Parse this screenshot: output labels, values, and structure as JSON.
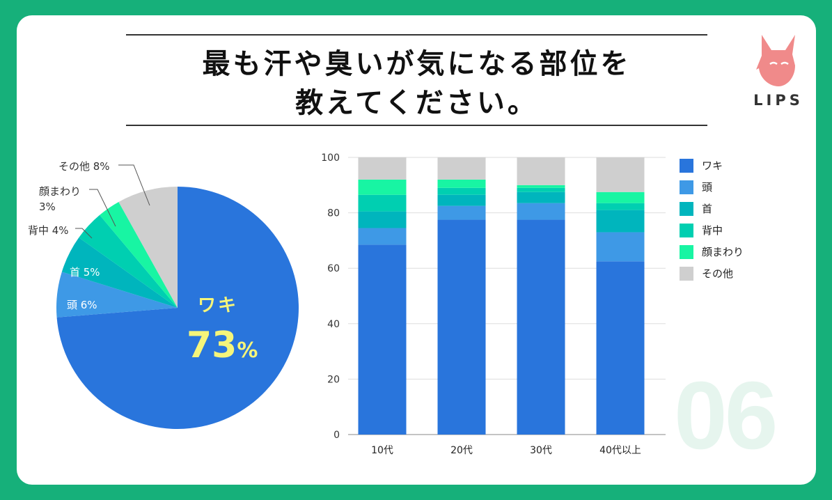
{
  "title": {
    "line1": "最も汗や臭いが気になる部位を",
    "line2": "教えてください。"
  },
  "logo": {
    "text": "LIPS",
    "color": "#f08a8a"
  },
  "page_number": "06",
  "colors": {
    "background": "#16b07a",
    "ワキ": "#2975dc",
    "頭": "#3e99e6",
    "首": "#00b5bd",
    "背中": "#00cfb1",
    "顔まわり": "#18f5a3",
    "その他": "#cfcfcf",
    "highlight": "#f5f57a"
  },
  "pie_labels": {
    "sonota": "その他 8%",
    "kao_1": "顔まわり",
    "kao_2": "3%",
    "senaka": "背中 4%",
    "kubi": "首 5%",
    "atama": "頭 6%",
    "waki_name": "ワキ",
    "waki_value": "73",
    "waki_unit": "%"
  },
  "chart_data": [
    {
      "type": "pie",
      "categories": [
        "ワキ",
        "頭",
        "首",
        "背中",
        "顔まわり",
        "その他"
      ],
      "values": [
        73,
        6,
        5,
        4,
        3,
        8
      ]
    },
    {
      "type": "bar",
      "stacked": true,
      "categories": [
        "10代",
        "20代",
        "30代",
        "40代以上"
      ],
      "series": [
        {
          "name": "ワキ",
          "values": [
            68.5,
            77.5,
            77.5,
            62.5
          ]
        },
        {
          "name": "頭",
          "values": [
            6,
            5,
            6,
            10.5
          ]
        },
        {
          "name": "首",
          "values": [
            6,
            4,
            4,
            8
          ]
        },
        {
          "name": "背中",
          "values": [
            6,
            2.5,
            1.5,
            2.5
          ]
        },
        {
          "name": "顔まわり",
          "values": [
            5.5,
            3,
            1,
            4
          ]
        },
        {
          "name": "その他",
          "values": [
            8,
            8,
            10,
            12.5
          ]
        }
      ],
      "ylim": [
        0,
        100
      ],
      "yticks": [
        0,
        20,
        40,
        60,
        80,
        100
      ],
      "grid": true,
      "legend": "right"
    }
  ]
}
